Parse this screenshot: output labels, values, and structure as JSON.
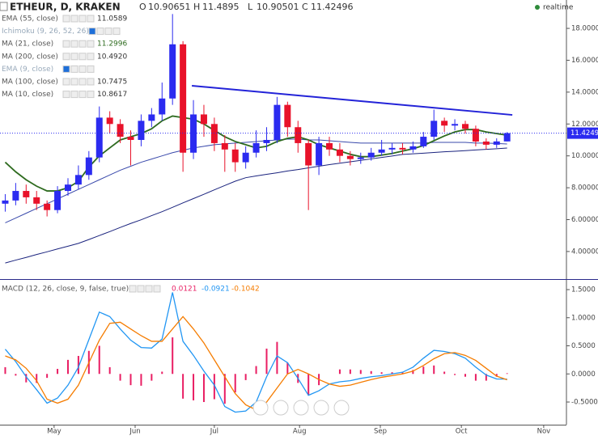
{
  "header": {
    "symbol": "ETHEUR, D, KRAKEN",
    "ohlc_labels": [
      "O",
      "H",
      "L",
      "C"
    ],
    "status": "realtime"
  },
  "legend": [
    {
      "name": "EMA (55, close)",
      "value": "11.0589"
    },
    {
      "name": "Ichimoku (9, 26, 52, 26)"
    },
    {
      "name": "MA (21, close)",
      "value": "11.2996"
    },
    {
      "name": "MA (200, close)",
      "value": "10.4920"
    },
    {
      "name": "EMA (9, close)"
    },
    {
      "name": "MA (100, close)",
      "value": "10.7475"
    },
    {
      "name": "MA (10, close)",
      "value": "10.8617"
    }
  ],
  "macd_legend": {
    "name": "MACD (12, 26, close, 9, false, true)",
    "values": [
      "0.0121",
      "-0.0921",
      "-0.1042"
    ]
  },
  "chart_data": [
    {
      "type": "candlestick",
      "x": [
        2,
        6,
        10,
        14,
        18,
        22,
        26,
        30,
        34,
        38,
        42,
        46,
        50,
        54,
        58,
        62,
        66,
        70,
        74,
        78,
        82,
        86,
        90,
        94,
        98,
        102,
        106,
        110,
        114,
        118,
        122,
        126,
        130,
        134,
        138,
        142,
        146,
        150,
        154,
        158,
        162,
        166,
        170,
        174,
        178,
        182,
        186,
        190,
        194
      ],
      "open": [
        7.0,
        7.2,
        7.8,
        7.4,
        7.0,
        6.6,
        7.8,
        8.2,
        8.8,
        9.9,
        12.4,
        12.0,
        11.2,
        11.0,
        12.2,
        12.6,
        13.6,
        17.0,
        10.2,
        12.6,
        12.0,
        10.8,
        10.4,
        9.6,
        10.2,
        10.8,
        11.0,
        13.2,
        11.8,
        10.8,
        9.4,
        10.8,
        10.4,
        10.0,
        9.8,
        9.9,
        10.2,
        10.4,
        10.5,
        10.4,
        10.6,
        11.2,
        12.2,
        11.9,
        12.0,
        11.7,
        10.9,
        10.7,
        10.90651
      ],
      "high": [
        7.6,
        8.3,
        8.2,
        7.8,
        7.2,
        8.1,
        8.6,
        9.4,
        10.3,
        13.1,
        12.8,
        12.3,
        11.6,
        12.6,
        13.0,
        14.6,
        18.9,
        17.2,
        13.5,
        13.2,
        12.4,
        11.3,
        10.8,
        10.6,
        11.6,
        11.8,
        13.7,
        13.4,
        12.2,
        11.0,
        11.2,
        11.2,
        10.8,
        10.3,
        10.2,
        10.5,
        11.0,
        10.8,
        10.8,
        10.9,
        11.5,
        12.9,
        12.4,
        12.3,
        12.2,
        11.9,
        11.1,
        11.1,
        11.4895
      ],
      "low": [
        6.5,
        6.9,
        7.0,
        6.6,
        6.2,
        6.4,
        7.5,
        7.9,
        8.5,
        9.6,
        11.4,
        10.8,
        9.4,
        10.6,
        11.8,
        12.2,
        13.2,
        9.0,
        9.8,
        11.2,
        10.3,
        9.0,
        9.0,
        9.2,
        9.9,
        10.3,
        10.8,
        11.2,
        10.2,
        6.6,
        8.8,
        10.0,
        9.6,
        9.4,
        9.5,
        9.7,
        10.0,
        10.1,
        10.1,
        10.2,
        10.5,
        11.0,
        11.5,
        11.6,
        11.4,
        10.6,
        10.4,
        10.5,
        10.90501
      ],
      "close": [
        7.2,
        7.8,
        7.4,
        7.0,
        6.6,
        7.8,
        8.2,
        8.8,
        9.9,
        12.4,
        12.0,
        11.2,
        11.0,
        12.2,
        12.6,
        13.6,
        17.0,
        10.2,
        12.6,
        12.0,
        10.8,
        10.4,
        9.6,
        10.2,
        10.8,
        11.0,
        13.2,
        11.8,
        10.8,
        9.4,
        10.8,
        10.4,
        10.0,
        9.8,
        9.9,
        10.2,
        10.4,
        10.5,
        10.4,
        10.6,
        11.2,
        12.2,
        11.9,
        12.0,
        11.7,
        10.9,
        10.7,
        10.90651,
        11.42496
      ],
      "up_color": "#2b2bf0",
      "down_color": "#e8122a",
      "last_price_label": "11.4249",
      "series": [
        {
          "name": "MA (200, close)",
          "color": "#1a237e",
          "values": [
            3.28,
            3.46,
            3.63,
            3.81,
            3.98,
            4.16,
            4.33,
            4.51,
            4.75,
            5.0,
            5.25,
            5.51,
            5.76,
            5.99,
            6.25,
            6.5,
            6.77,
            7.05,
            7.32,
            7.59,
            7.87,
            8.14,
            8.41,
            8.63,
            8.74,
            8.84,
            8.94,
            9.05,
            9.14,
            9.25,
            9.35,
            9.45,
            9.54,
            9.63,
            9.72,
            9.81,
            9.9,
            9.99,
            10.09,
            10.13,
            10.17,
            10.21,
            10.26,
            10.29,
            10.33,
            10.37,
            10.41,
            10.45,
            10.492
          ]
        },
        {
          "name": "MA (100, close)",
          "color": "#3949ab",
          "values": [
            5.8,
            6.1,
            6.4,
            6.7,
            7.0,
            7.3,
            7.6,
            7.9,
            8.2,
            8.5,
            8.8,
            9.1,
            9.35,
            9.6,
            9.8,
            10.0,
            10.2,
            10.35,
            10.5,
            10.6,
            10.7,
            10.75,
            10.8,
            10.85,
            10.9,
            10.95,
            11.0,
            11.05,
            11.05,
            11.0,
            11.0,
            10.95,
            10.9,
            10.85,
            10.8,
            10.8,
            10.8,
            10.8,
            10.8,
            10.8,
            10.8,
            10.85,
            10.85,
            10.85,
            10.85,
            10.8,
            10.8,
            10.78,
            10.7475
          ]
        },
        {
          "name": "MA (21, close)",
          "color": "#2e6b1f",
          "values": [
            9.6,
            9.0,
            8.5,
            8.1,
            7.8,
            7.8,
            8.0,
            8.4,
            9.3,
            10.0,
            10.5,
            11.0,
            11.2,
            11.4,
            11.7,
            12.2,
            12.5,
            12.4,
            12.3,
            12.0,
            11.6,
            11.2,
            10.9,
            10.7,
            10.5,
            10.6,
            10.9,
            11.1,
            11.2,
            11.0,
            10.7,
            10.5,
            10.3,
            10.1,
            9.95,
            9.95,
            10.05,
            10.15,
            10.3,
            10.45,
            10.65,
            10.95,
            11.25,
            11.5,
            11.65,
            11.65,
            11.5,
            11.4,
            11.2996
          ]
        }
      ],
      "trendline": {
        "x": [
          73.4,
          196
        ],
        "values": [
          14.4,
          12.57
        ],
        "color": "#2323d8"
      },
      "xlim": [
        0,
        216.7
      ],
      "ylim": [
        2.27,
        19.78
      ],
      "yticks": [
        {
          "value": 4,
          "label": "4.00000"
        },
        {
          "value": 6,
          "label": "6.00000"
        },
        {
          "value": 8,
          "label": "8.00000"
        },
        {
          "value": 10,
          "label": "10.00000"
        },
        {
          "value": 12,
          "label": "12.00000"
        },
        {
          "value": 14,
          "label": "14.00000"
        },
        {
          "value": 16,
          "label": "16.00000"
        },
        {
          "value": 18,
          "label": "18.00000"
        }
      ]
    },
    {
      "type": "macd",
      "x": [
        2,
        6,
        10,
        14,
        18,
        22,
        26,
        30,
        34,
        38,
        42,
        46,
        50,
        54,
        58,
        62,
        66,
        70,
        74,
        78,
        82,
        86,
        90,
        94,
        98,
        102,
        106,
        110,
        114,
        118,
        122,
        126,
        130,
        134,
        138,
        142,
        146,
        150,
        154,
        158,
        162,
        166,
        170,
        174,
        178,
        182,
        186,
        190,
        194
      ],
      "histogram": {
        "name": "Histogram",
        "color": "#e91e63",
        "values": [
          0.12,
          -0.03,
          -0.15,
          -0.16,
          -0.07,
          0.09,
          0.25,
          0.32,
          0.41,
          0.5,
          0.12,
          -0.12,
          -0.2,
          -0.21,
          -0.12,
          0.04,
          0.65,
          -0.44,
          -0.47,
          -0.5,
          -0.45,
          -0.53,
          -0.33,
          -0.11,
          0.14,
          0.45,
          0.57,
          0.2,
          -0.16,
          -0.38,
          -0.2,
          0.0,
          0.08,
          0.08,
          0.07,
          0.05,
          0.03,
          0.03,
          0.03,
          0.07,
          0.13,
          0.15,
          0.04,
          -0.02,
          -0.05,
          -0.12,
          -0.12,
          -0.05,
          0.0121
        ]
      },
      "series": [
        {
          "name": "MACD",
          "color": "#2196f3",
          "values": [
            0.44,
            0.22,
            -0.05,
            -0.28,
            -0.52,
            -0.43,
            -0.2,
            0.12,
            0.61,
            1.1,
            1.02,
            0.8,
            0.6,
            0.47,
            0.46,
            0.62,
            1.45,
            0.58,
            0.33,
            0.05,
            -0.2,
            -0.58,
            -0.68,
            -0.66,
            -0.5,
            -0.05,
            0.32,
            0.2,
            -0.08,
            -0.38,
            -0.3,
            -0.18,
            -0.14,
            -0.12,
            -0.08,
            -0.05,
            -0.03,
            0.0,
            0.03,
            0.12,
            0.28,
            0.42,
            0.4,
            0.36,
            0.28,
            0.12,
            -0.02,
            -0.09,
            -0.0921
          ]
        },
        {
          "name": "Signal",
          "color": "#f57c00",
          "values": [
            0.32,
            0.25,
            0.1,
            -0.12,
            -0.45,
            -0.52,
            -0.45,
            -0.2,
            0.2,
            0.6,
            0.9,
            0.92,
            0.8,
            0.68,
            0.58,
            0.58,
            0.8,
            1.02,
            0.8,
            0.55,
            0.25,
            -0.05,
            -0.35,
            -0.55,
            -0.64,
            -0.5,
            -0.25,
            0.0,
            0.08,
            0.0,
            -0.1,
            -0.18,
            -0.22,
            -0.2,
            -0.15,
            -0.1,
            -0.06,
            -0.03,
            0.0,
            0.05,
            0.15,
            0.27,
            0.36,
            0.38,
            0.33,
            0.24,
            0.1,
            -0.04,
            -0.1042
          ]
        }
      ],
      "xlim": [
        0,
        216.7
      ],
      "ylim": [
        -0.903,
        1.673
      ],
      "yticks": [
        {
          "value": -0.5,
          "label": "-0.5000"
        },
        {
          "value": 0,
          "label": "0.0000"
        },
        {
          "value": 0.5,
          "label": "0.5000"
        },
        {
          "value": 1,
          "label": "1.0000"
        },
        {
          "value": 1.5,
          "label": "1.5000"
        }
      ],
      "xticks": [
        {
          "value": 20.7,
          "label": "May"
        },
        {
          "value": 51.7,
          "label": "Jun"
        },
        {
          "value": 82,
          "label": "Jul"
        },
        {
          "value": 114.6,
          "label": "Aug"
        },
        {
          "value": 145.5,
          "label": "Sep"
        },
        {
          "value": 176.5,
          "label": "Oct"
        },
        {
          "value": 208,
          "label": "Nov"
        }
      ]
    }
  ]
}
